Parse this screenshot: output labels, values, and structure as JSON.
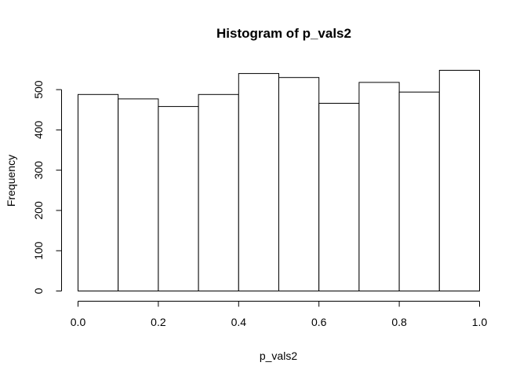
{
  "chart_data": {
    "type": "bar",
    "title": "Histogram of p_vals2",
    "xlabel": "p_vals2",
    "ylabel": "Frequency",
    "bin_edges": [
      0.0,
      0.1,
      0.2,
      0.3,
      0.4,
      0.5,
      0.6,
      0.7,
      0.8,
      0.9,
      1.0
    ],
    "values": [
      488,
      477,
      458,
      488,
      540,
      530,
      466,
      518,
      494,
      548
    ],
    "xlim": [
      0.0,
      1.0
    ],
    "ylim": [
      0,
      548
    ],
    "x_ticks": [
      0.0,
      0.2,
      0.4,
      0.6,
      0.8,
      1.0
    ],
    "x_tick_labels": [
      "0.0",
      "0.2",
      "0.4",
      "0.6",
      "0.8",
      "1.0"
    ],
    "y_ticks": [
      0,
      100,
      200,
      300,
      400,
      500
    ],
    "y_tick_labels": [
      "0",
      "100",
      "200",
      "300",
      "400",
      "500"
    ],
    "grid": false,
    "bar_fill": "#ffffff",
    "bar_stroke": "#000000"
  }
}
